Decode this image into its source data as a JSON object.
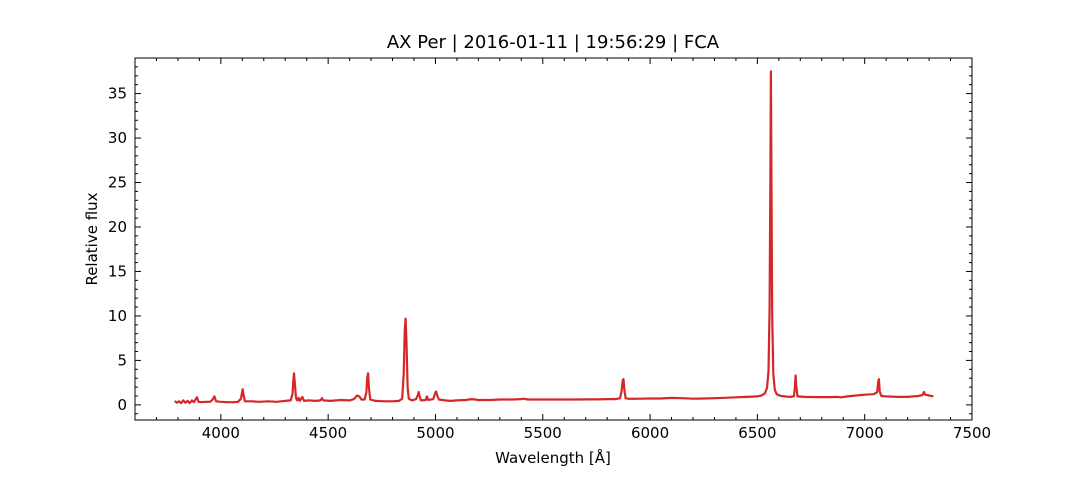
{
  "chart_data": {
    "type": "line",
    "title": "AX Per | 2016-01-11 | 19:56:29 | FCA",
    "xlabel": "Wavelength [Å]",
    "ylabel": "Relative flux",
    "xlim": [
      3600,
      7500
    ],
    "ylim": [
      -1.7,
      39
    ],
    "xticks": [
      4000,
      4500,
      5000,
      5500,
      6000,
      6500,
      7000,
      7500
    ],
    "yticks": [
      0,
      5,
      10,
      15,
      20,
      25,
      30,
      35
    ],
    "xminor_step": 100,
    "yminor_step": 1,
    "grid": false,
    "line_color": "#d62728",
    "series": [
      {
        "points": [
          [
            3785,
            0.45
          ],
          [
            3795,
            0.25
          ],
          [
            3805,
            0.4
          ],
          [
            3815,
            0.2
          ],
          [
            3825,
            0.5
          ],
          [
            3835,
            0.25
          ],
          [
            3845,
            0.45
          ],
          [
            3855,
            0.2
          ],
          [
            3865,
            0.5
          ],
          [
            3875,
            0.3
          ],
          [
            3882,
            0.6
          ],
          [
            3889,
            0.85
          ],
          [
            3896,
            0.35
          ],
          [
            3910,
            0.3
          ],
          [
            3930,
            0.35
          ],
          [
            3950,
            0.35
          ],
          [
            3962,
            0.6
          ],
          [
            3970,
            0.95
          ],
          [
            3978,
            0.4
          ],
          [
            4000,
            0.35
          ],
          [
            4030,
            0.3
          ],
          [
            4060,
            0.3
          ],
          [
            4080,
            0.35
          ],
          [
            4094,
            0.7
          ],
          [
            4098,
            1.3
          ],
          [
            4102,
            1.75
          ],
          [
            4106,
            1.1
          ],
          [
            4112,
            0.4
          ],
          [
            4140,
            0.4
          ],
          [
            4180,
            0.35
          ],
          [
            4220,
            0.4
          ],
          [
            4260,
            0.35
          ],
          [
            4300,
            0.45
          ],
          [
            4325,
            0.5
          ],
          [
            4334,
            1.2
          ],
          [
            4338,
            2.8
          ],
          [
            4341,
            3.55
          ],
          [
            4344,
            2.6
          ],
          [
            4350,
            0.8
          ],
          [
            4356,
            0.5
          ],
          [
            4362,
            0.8
          ],
          [
            4368,
            0.45
          ],
          [
            4380,
            0.9
          ],
          [
            4388,
            0.45
          ],
          [
            4410,
            0.5
          ],
          [
            4440,
            0.45
          ],
          [
            4464,
            0.5
          ],
          [
            4471,
            0.75
          ],
          [
            4478,
            0.5
          ],
          [
            4510,
            0.45
          ],
          [
            4560,
            0.55
          ],
          [
            4600,
            0.5
          ],
          [
            4620,
            0.65
          ],
          [
            4635,
            1.05
          ],
          [
            4645,
            0.95
          ],
          [
            4655,
            0.6
          ],
          [
            4670,
            0.6
          ],
          [
            4678,
            1.4
          ],
          [
            4682,
            3.0
          ],
          [
            4686,
            3.55
          ],
          [
            4690,
            2.0
          ],
          [
            4696,
            0.6
          ],
          [
            4720,
            0.45
          ],
          [
            4760,
            0.4
          ],
          [
            4800,
            0.4
          ],
          [
            4830,
            0.45
          ],
          [
            4845,
            0.7
          ],
          [
            4852,
            3.5
          ],
          [
            4857,
            8.5
          ],
          [
            4861,
            9.7
          ],
          [
            4865,
            7.0
          ],
          [
            4870,
            2.0
          ],
          [
            4876,
            0.7
          ],
          [
            4890,
            0.5
          ],
          [
            4910,
            0.65
          ],
          [
            4918,
            1.1
          ],
          [
            4922,
            1.45
          ],
          [
            4926,
            1.0
          ],
          [
            4932,
            0.5
          ],
          [
            4955,
            0.55
          ],
          [
            4960,
            0.95
          ],
          [
            4966,
            0.55
          ],
          [
            4990,
            0.65
          ],
          [
            4997,
            1.2
          ],
          [
            5003,
            1.5
          ],
          [
            5009,
            1.0
          ],
          [
            5016,
            0.6
          ],
          [
            5030,
            0.55
          ],
          [
            5045,
            0.5
          ],
          [
            5070,
            0.45
          ],
          [
            5100,
            0.5
          ],
          [
            5140,
            0.55
          ],
          [
            5170,
            0.65
          ],
          [
            5200,
            0.55
          ],
          [
            5230,
            0.55
          ],
          [
            5260,
            0.55
          ],
          [
            5300,
            0.6
          ],
          [
            5330,
            0.6
          ],
          [
            5360,
            0.6
          ],
          [
            5400,
            0.65
          ],
          [
            5410,
            0.7
          ],
          [
            5430,
            0.6
          ],
          [
            5470,
            0.6
          ],
          [
            5520,
            0.6
          ],
          [
            5560,
            0.6
          ],
          [
            5600,
            0.6
          ],
          [
            5650,
            0.6
          ],
          [
            5700,
            0.62
          ],
          [
            5750,
            0.62
          ],
          [
            5800,
            0.65
          ],
          [
            5840,
            0.65
          ],
          [
            5860,
            0.75
          ],
          [
            5868,
            1.6
          ],
          [
            5872,
            2.7
          ],
          [
            5876,
            2.9
          ],
          [
            5880,
            1.8
          ],
          [
            5886,
            0.75
          ],
          [
            5900,
            0.68
          ],
          [
            5950,
            0.7
          ],
          [
            6000,
            0.72
          ],
          [
            6050,
            0.72
          ],
          [
            6100,
            0.78
          ],
          [
            6150,
            0.75
          ],
          [
            6200,
            0.7
          ],
          [
            6250,
            0.72
          ],
          [
            6300,
            0.75
          ],
          [
            6350,
            0.8
          ],
          [
            6400,
            0.85
          ],
          [
            6450,
            0.9
          ],
          [
            6500,
            0.95
          ],
          [
            6520,
            1.05
          ],
          [
            6535,
            1.3
          ],
          [
            6545,
            1.9
          ],
          [
            6552,
            3.8
          ],
          [
            6557,
            11.0
          ],
          [
            6560,
            24.0
          ],
          [
            6563,
            37.5
          ],
          [
            6566,
            24.0
          ],
          [
            6569,
            10.0
          ],
          [
            6574,
            3.5
          ],
          [
            6581,
            1.7
          ],
          [
            6590,
            1.2
          ],
          [
            6610,
            1.0
          ],
          [
            6650,
            0.9
          ],
          [
            6670,
            0.95
          ],
          [
            6675,
            2.0
          ],
          [
            6678,
            3.3
          ],
          [
            6681,
            2.2
          ],
          [
            6687,
            0.95
          ],
          [
            6720,
            0.9
          ],
          [
            6780,
            0.88
          ],
          [
            6840,
            0.88
          ],
          [
            6870,
            0.9
          ],
          [
            6890,
            0.85
          ],
          [
            6920,
            0.95
          ],
          [
            6960,
            1.05
          ],
          [
            7000,
            1.15
          ],
          [
            7040,
            1.2
          ],
          [
            7058,
            1.4
          ],
          [
            7063,
            2.6
          ],
          [
            7066,
            2.9
          ],
          [
            7070,
            1.5
          ],
          [
            7078,
            1.0
          ],
          [
            7100,
            0.95
          ],
          [
            7150,
            0.9
          ],
          [
            7200,
            0.9
          ],
          [
            7250,
            1.0
          ],
          [
            7270,
            1.1
          ],
          [
            7276,
            1.45
          ],
          [
            7282,
            1.15
          ],
          [
            7300,
            1.05
          ],
          [
            7320,
            0.95
          ]
        ]
      }
    ]
  }
}
